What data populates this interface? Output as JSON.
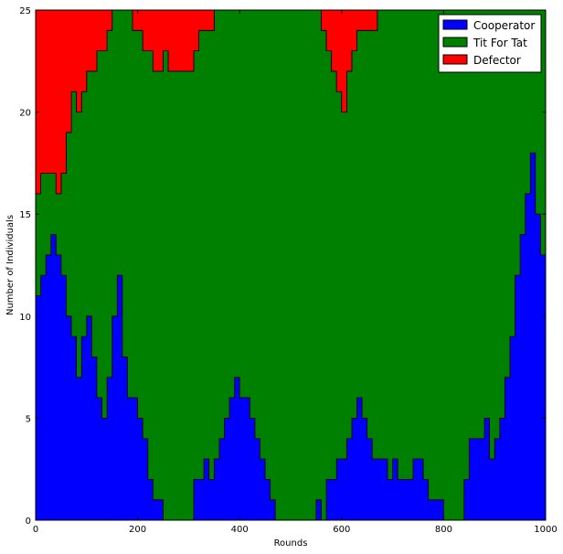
{
  "chart_data": {
    "type": "area",
    "stacked": true,
    "title": "",
    "xlabel": "Rounds",
    "ylabel": "Number of Individuals",
    "xlim": [
      0,
      1000
    ],
    "ylim": [
      0,
      25
    ],
    "xticks": [
      0,
      200,
      400,
      600,
      800,
      1000
    ],
    "yticks": [
      0,
      5,
      10,
      15,
      20,
      25
    ],
    "xtick_labels": [
      "0",
      "200",
      "400",
      "600",
      "800",
      "1000"
    ],
    "ytick_labels": [
      "0",
      "5",
      "10",
      "15",
      "20",
      "25"
    ],
    "grid": false,
    "legend_position": "top-right",
    "x": [
      0,
      10,
      20,
      30,
      40,
      50,
      60,
      70,
      80,
      90,
      100,
      110,
      120,
      130,
      140,
      150,
      160,
      170,
      180,
      190,
      200,
      210,
      220,
      230,
      240,
      250,
      260,
      270,
      280,
      290,
      300,
      310,
      320,
      330,
      340,
      350,
      360,
      370,
      380,
      390,
      400,
      410,
      420,
      430,
      440,
      450,
      460,
      470,
      480,
      490,
      500,
      510,
      520,
      530,
      540,
      550,
      560,
      570,
      580,
      590,
      600,
      610,
      620,
      630,
      640,
      650,
      660,
      670,
      680,
      690,
      700,
      710,
      720,
      730,
      740,
      750,
      760,
      770,
      780,
      790,
      800,
      810,
      820,
      830,
      840,
      850,
      860,
      870,
      880,
      890,
      900,
      910,
      920,
      930,
      940,
      950,
      960,
      970,
      980,
      990,
      1000
    ],
    "series": [
      {
        "name": "Cooperator",
        "color": "#0000ff",
        "values": [
          11,
          12,
          13,
          14,
          13,
          12,
          10,
          9,
          7,
          9,
          10,
          8,
          6,
          5,
          7,
          10,
          12,
          8,
          6,
          6,
          5,
          4,
          2,
          1,
          1,
          0,
          0,
          0,
          0,
          0,
          0,
          2,
          2,
          3,
          2,
          3,
          4,
          5,
          6,
          7,
          6,
          6,
          5,
          4,
          3,
          2,
          1,
          0,
          0,
          0,
          0,
          0,
          0,
          0,
          0,
          1,
          0,
          2,
          2,
          3,
          3,
          4,
          5,
          6,
          5,
          4,
          3,
          3,
          3,
          2,
          3,
          2,
          2,
          2,
          3,
          3,
          2,
          1,
          1,
          1,
          0,
          0,
          0,
          0,
          2,
          4,
          4,
          4,
          5,
          3,
          4,
          5,
          7,
          9,
          12,
          14,
          16,
          18,
          15,
          13,
          12
        ]
      },
      {
        "name": "Tit For Tat",
        "color": "#008000",
        "values": [
          5,
          5,
          4,
          3,
          3,
          5,
          9,
          12,
          13,
          12,
          12,
          14,
          17,
          18,
          17,
          15,
          13,
          17,
          19,
          18,
          19,
          19,
          21,
          21,
          21,
          23,
          22,
          22,
          22,
          22,
          22,
          21,
          22,
          21,
          22,
          22,
          21,
          20,
          19,
          18,
          19,
          19,
          20,
          21,
          22,
          23,
          24,
          25,
          25,
          25,
          25,
          25,
          25,
          25,
          25,
          24,
          24,
          21,
          20,
          18,
          17,
          18,
          18,
          18,
          19,
          20,
          21,
          22,
          22,
          23,
          22,
          23,
          23,
          23,
          22,
          22,
          23,
          24,
          24,
          24,
          25,
          25,
          25,
          25,
          23,
          21,
          21,
          21,
          20,
          22,
          21,
          20,
          18,
          16,
          13,
          11,
          9,
          7,
          10,
          12,
          13
        ]
      },
      {
        "name": "Defector",
        "color": "#ff0000",
        "values": [
          9,
          8,
          8,
          8,
          9,
          8,
          6,
          4,
          5,
          4,
          3,
          3,
          2,
          2,
          1,
          0,
          0,
          0,
          0,
          1,
          1,
          2,
          2,
          3,
          3,
          2,
          3,
          3,
          3,
          3,
          3,
          2,
          1,
          1,
          1,
          0,
          0,
          0,
          0,
          0,
          0,
          0,
          0,
          0,
          0,
          0,
          0,
          0,
          0,
          0,
          0,
          0,
          0,
          0,
          0,
          0,
          1,
          2,
          3,
          4,
          5,
          3,
          2,
          1,
          1,
          1,
          1,
          0,
          0,
          0,
          0,
          0,
          0,
          0,
          0,
          0,
          0,
          0,
          0,
          0,
          0,
          0,
          0,
          0,
          0,
          0,
          0,
          0,
          0,
          0,
          0,
          0,
          0,
          0,
          0,
          0,
          0,
          0,
          0,
          0,
          0
        ]
      }
    ]
  }
}
